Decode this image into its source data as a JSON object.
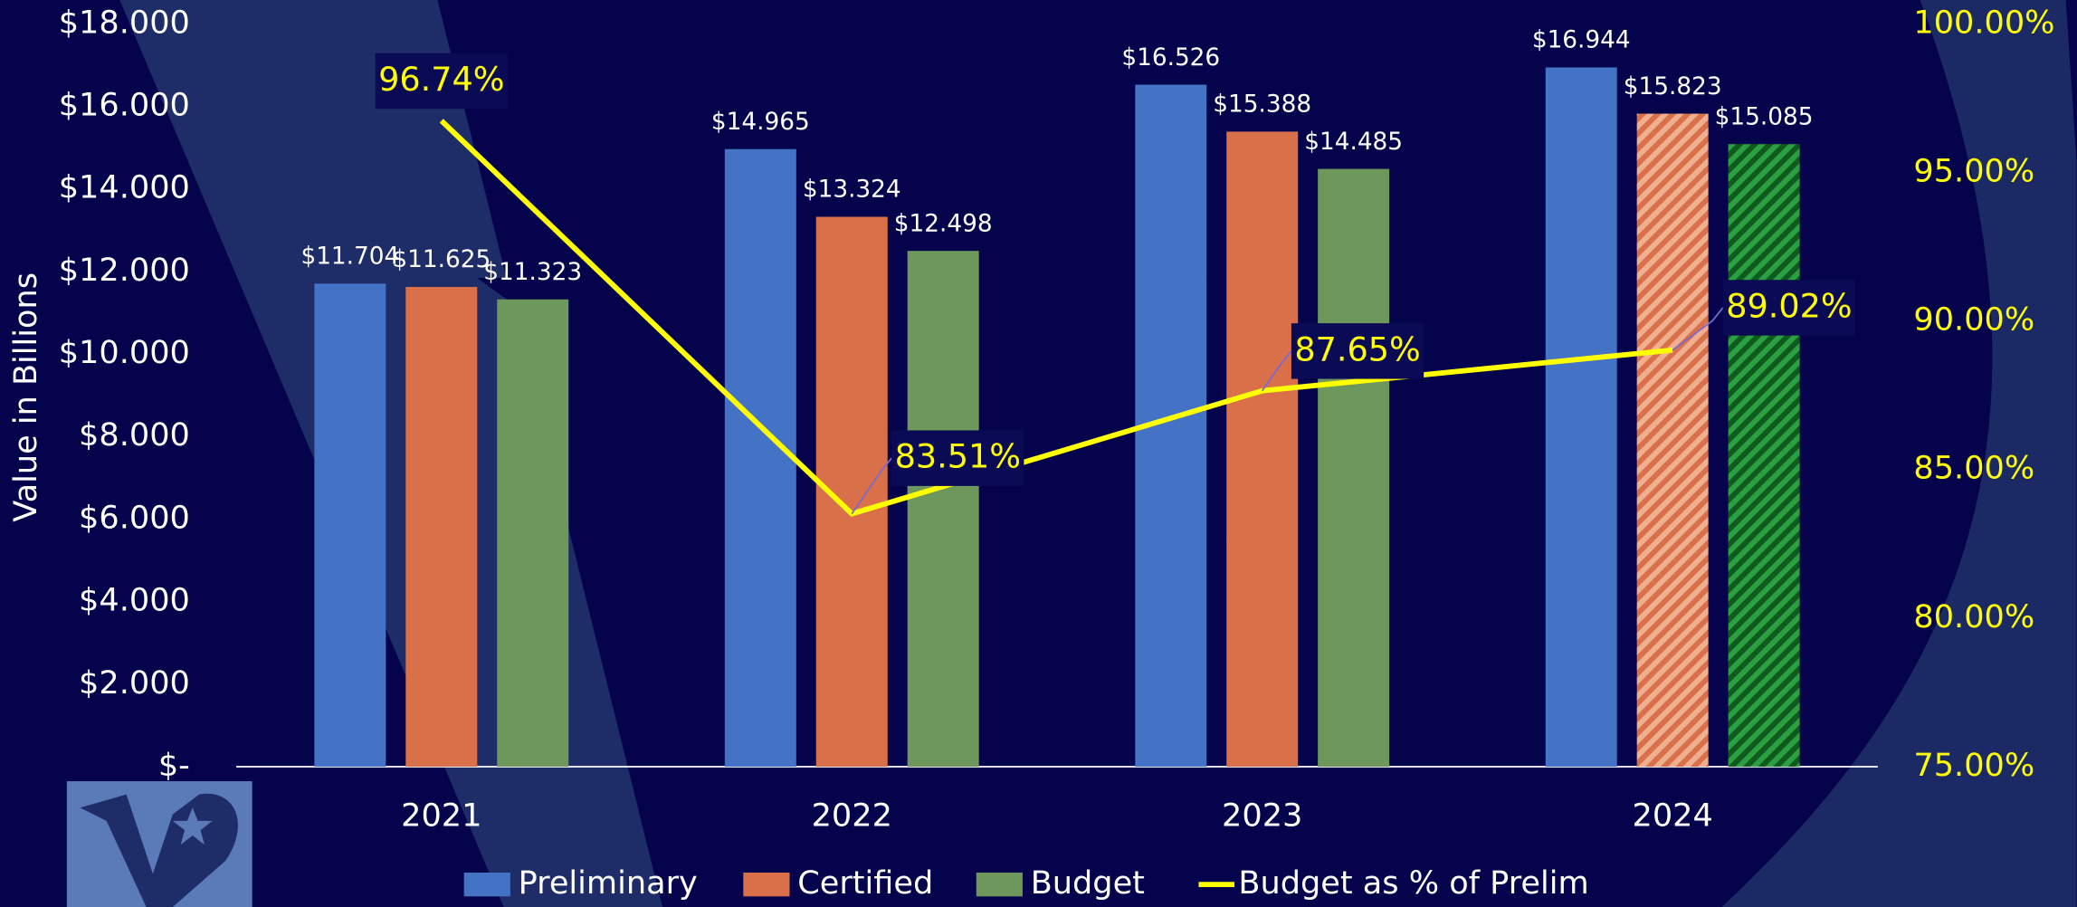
{
  "chart_data": {
    "type": "bar",
    "y_label": "Value in Billions",
    "categories": [
      "2021",
      "2022",
      "2023",
      "2024"
    ],
    "series": [
      {
        "name": "Preliminary",
        "color": "#4472c4",
        "values": [
          11.704,
          14.965,
          16.526,
          16.944
        ],
        "value_labels": [
          "$11.704",
          "$14.965",
          "$16.526",
          "$16.944"
        ]
      },
      {
        "name": "Certified",
        "color": "#d9704a",
        "values": [
          11.625,
          13.324,
          15.388,
          15.823
        ],
        "value_labels": [
          "$11.625",
          "$13.324",
          "$15.388",
          "$15.823"
        ]
      },
      {
        "name": "Budget",
        "color": "#6e975c",
        "values": [
          11.323,
          12.498,
          14.485,
          15.085
        ],
        "value_labels": [
          "$11.323",
          "$12.498",
          "$14.485",
          "$15.085"
        ]
      },
      {
        "name": "Budget as % of Prelim",
        "type": "line",
        "axis": "y2",
        "color": "#ffff00",
        "values": [
          96.74,
          83.51,
          87.65,
          89.02
        ],
        "value_labels": [
          "96.74%",
          "83.51%",
          "87.65%",
          "89.02%"
        ]
      }
    ],
    "ylim": [
      0,
      18
    ],
    "yticks": [
      {
        "value": 0,
        "label": "$-"
      },
      {
        "value": 2,
        "label": "$2.000"
      },
      {
        "value": 4,
        "label": "$4.000"
      },
      {
        "value": 6,
        "label": "$6.000"
      },
      {
        "value": 8,
        "label": "$8.000"
      },
      {
        "value": 10,
        "label": "$10.000"
      },
      {
        "value": 12,
        "label": "$12.000"
      },
      {
        "value": 14,
        "label": "$14.000"
      },
      {
        "value": 16,
        "label": "$16.000"
      },
      {
        "value": 18,
        "label": "$18.000"
      }
    ],
    "y2lim": [
      75,
      100
    ],
    "y2ticks": [
      {
        "value": 75,
        "label": "75.00%"
      },
      {
        "value": 80,
        "label": "80.00%"
      },
      {
        "value": 85,
        "label": "85.00%"
      },
      {
        "value": 90,
        "label": "90.00%"
      },
      {
        "value": 95,
        "label": "95.00%"
      },
      {
        "value": 100,
        "label": "100.00%"
      }
    ],
    "legend": "bottom"
  }
}
